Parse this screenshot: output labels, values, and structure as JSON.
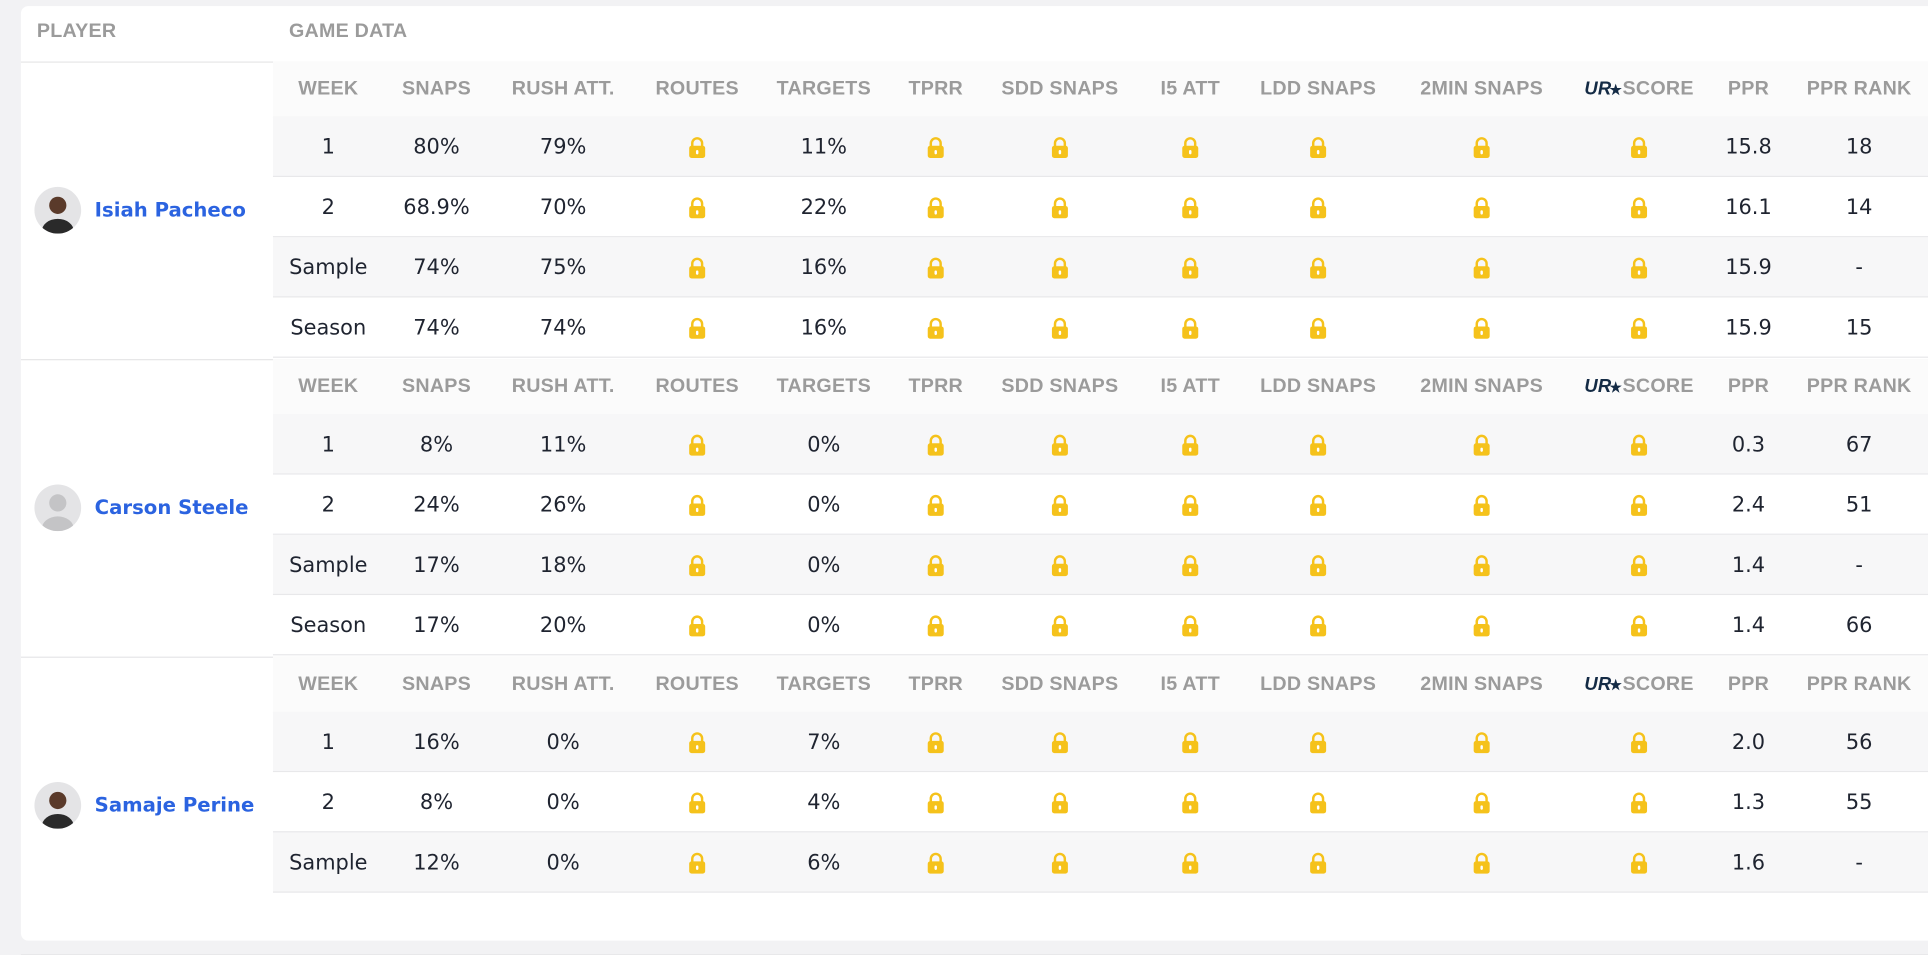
{
  "header": {
    "player": "PLAYER",
    "game_data": "GAME DATA"
  },
  "columns": [
    "WEEK",
    "SNAPS",
    "RUSH ATT.",
    "ROUTES",
    "TARGETS",
    "TPRR",
    "SDD SNAPS",
    "I5 ATT",
    "LDD SNAPS",
    "2MIN SNAPS",
    "SCORE",
    "PPR",
    "PPR RANK"
  ],
  "score_logo": "UR",
  "players": [
    {
      "name": "Isiah Pacheco",
      "rows": [
        [
          "1",
          "80%",
          "79%",
          null,
          "11%",
          null,
          null,
          null,
          null,
          null,
          null,
          "15.8",
          "18"
        ],
        [
          "2",
          "68.9%",
          "70%",
          null,
          "22%",
          null,
          null,
          null,
          null,
          null,
          null,
          "16.1",
          "14"
        ],
        [
          "Sample",
          "74%",
          "75%",
          null,
          "16%",
          null,
          null,
          null,
          null,
          null,
          null,
          "15.9",
          "-"
        ],
        [
          "Season",
          "74%",
          "74%",
          null,
          "16%",
          null,
          null,
          null,
          null,
          null,
          null,
          "15.9",
          "15"
        ]
      ]
    },
    {
      "name": "Carson Steele",
      "rows": [
        [
          "1",
          "8%",
          "11%",
          null,
          "0%",
          null,
          null,
          null,
          null,
          null,
          null,
          "0.3",
          "67"
        ],
        [
          "2",
          "24%",
          "26%",
          null,
          "0%",
          null,
          null,
          null,
          null,
          null,
          null,
          "2.4",
          "51"
        ],
        [
          "Sample",
          "17%",
          "18%",
          null,
          "0%",
          null,
          null,
          null,
          null,
          null,
          null,
          "1.4",
          "-"
        ],
        [
          "Season",
          "17%",
          "20%",
          null,
          "0%",
          null,
          null,
          null,
          null,
          null,
          null,
          "1.4",
          "66"
        ]
      ]
    },
    {
      "name": "Samaje Perine",
      "rows": [
        [
          "1",
          "16%",
          "0%",
          null,
          "7%",
          null,
          null,
          null,
          null,
          null,
          null,
          "2.0",
          "56"
        ],
        [
          "2",
          "8%",
          "0%",
          null,
          "4%",
          null,
          null,
          null,
          null,
          null,
          null,
          "1.3",
          "55"
        ],
        [
          "Sample",
          "12%",
          "0%",
          null,
          "6%",
          null,
          null,
          null,
          null,
          null,
          null,
          "1.6",
          "-"
        ]
      ]
    }
  ]
}
